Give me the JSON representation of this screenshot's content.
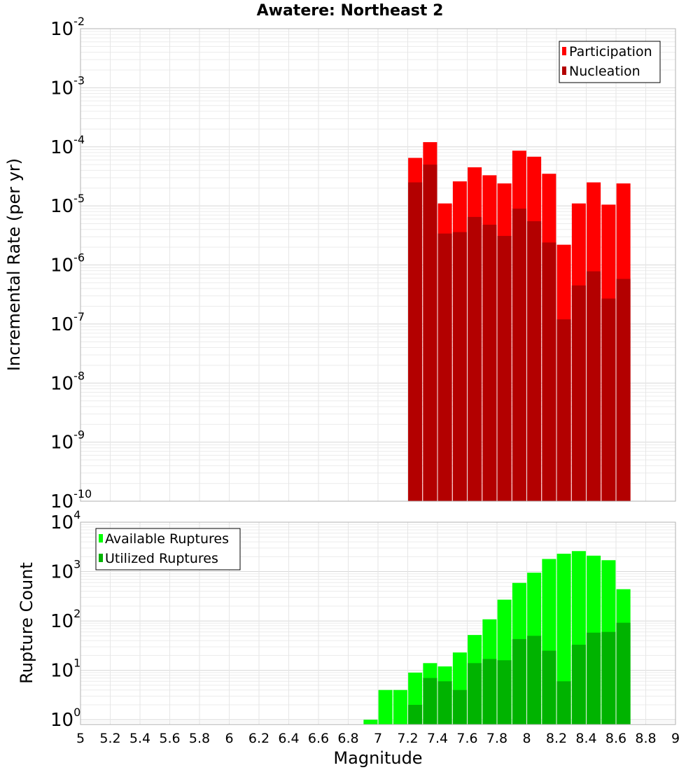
{
  "title": "Awatere: Northeast 2",
  "xlabel": "Magnitude",
  "x_ticks": [
    "5",
    "5.2",
    "5.4",
    "5.6",
    "5.8",
    "6",
    "6.2",
    "6.4",
    "6.6",
    "6.8",
    "7",
    "7.2",
    "7.4",
    "7.6",
    "7.8",
    "8",
    "8.2",
    "8.4",
    "8.6",
    "8.8",
    "9"
  ],
  "chart_data": [
    {
      "type": "bar",
      "ylabel": "Incremental Rate (per yr)",
      "yscale": "log",
      "ylim": [
        1e-10,
        0.01
      ],
      "y_tick_exponents": [
        "-10",
        "-9",
        "-8",
        "-7",
        "-6",
        "-5",
        "-4",
        "-3",
        "-2"
      ],
      "xlim": [
        5,
        9
      ],
      "grid": true,
      "legend_position": "top-right",
      "x": [
        7.25,
        7.35,
        7.45,
        7.55,
        7.65,
        7.75,
        7.85,
        7.95,
        8.05,
        8.15,
        8.25,
        8.35,
        8.45,
        8.55,
        8.65
      ],
      "series": [
        {
          "name": "Participation",
          "color": "#ff0000",
          "values": [
            6.5e-05,
            0.00012,
            1.1e-05,
            2.6e-05,
            4.5e-05,
            3.3e-05,
            2.4e-05,
            8.6e-05,
            6.8e-05,
            3.5e-05,
            2.2e-06,
            1.1e-05,
            2.5e-05,
            1.05e-05,
            2.4e-05
          ]
        },
        {
          "name": "Nucleation",
          "color": "#b30000",
          "values": [
            2.5e-05,
            5e-05,
            3.4e-06,
            3.6e-06,
            6.5e-06,
            4.8e-06,
            3.1e-06,
            9e-06,
            5.5e-06,
            2.4e-06,
            1.2e-07,
            4.5e-07,
            7.8e-07,
            2.7e-07,
            5.8e-07
          ]
        }
      ]
    },
    {
      "type": "bar",
      "ylabel": "Rupture Count",
      "yscale": "log",
      "ylim": [
        0.8,
        10000
      ],
      "y_tick_exponents": [
        "0",
        "1",
        "2",
        "3",
        "4"
      ],
      "xlim": [
        5,
        9
      ],
      "grid": true,
      "legend_position": "top-left",
      "x": [
        6.95,
        7.05,
        7.15,
        7.25,
        7.35,
        7.45,
        7.55,
        7.65,
        7.75,
        7.85,
        7.95,
        8.05,
        8.15,
        8.25,
        8.35,
        8.45,
        8.55,
        8.65
      ],
      "series": [
        {
          "name": "Available Ruptures",
          "color": "#00ff00",
          "values": [
            1,
            4,
            4,
            9,
            14,
            12,
            23,
            52,
            108,
            270,
            590,
            950,
            1800,
            2300,
            2600,
            2100,
            1700,
            440
          ]
        },
        {
          "name": "Utilized Ruptures",
          "color": "#00b300",
          "values": [
            0,
            0,
            0,
            2,
            7,
            6,
            4,
            14,
            17,
            16,
            43,
            50,
            25,
            6,
            33,
            58,
            60,
            92
          ]
        }
      ]
    }
  ]
}
